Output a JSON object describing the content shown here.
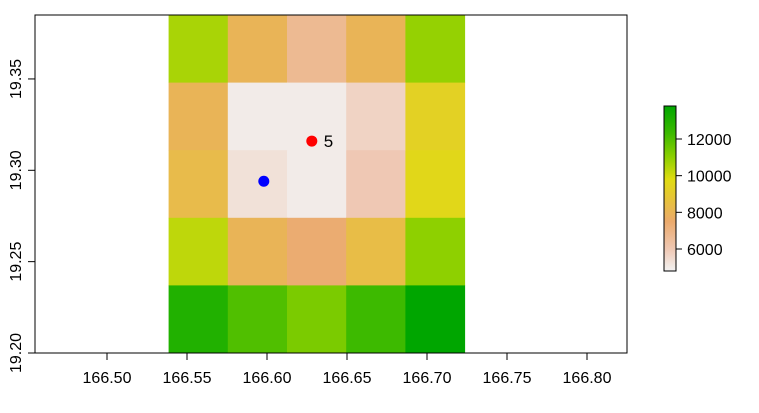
{
  "chart_data": {
    "type": "heatmap",
    "title": "",
    "xlabel": "",
    "ylabel": "",
    "xlim": [
      166.455,
      166.825
    ],
    "ylim": [
      19.2,
      19.385
    ],
    "x_ticks": [
      "166.50",
      "166.55",
      "166.60",
      "166.65",
      "166.70",
      "166.75",
      "166.80"
    ],
    "y_ticks": [
      "19.20",
      "19.25",
      "19.30",
      "19.35"
    ],
    "grid": false,
    "raster": {
      "x_edges": [
        166.5385,
        166.5755,
        166.6125,
        166.6495,
        166.6865,
        166.7235
      ],
      "y_edges": [
        19.2,
        19.237,
        19.274,
        19.311,
        19.348,
        19.385
      ],
      "rows_top_to_bottom": [
        [
          10600,
          8000,
          6700,
          8000,
          10900
        ],
        [
          8000,
          5000,
          5000,
          5700,
          9300
        ],
        [
          8300,
          5300,
          5000,
          6000,
          9600
        ],
        [
          10300,
          8000,
          7400,
          8400,
          11000
        ],
        [
          13000,
          12000,
          11300,
          12300,
          13800
        ]
      ]
    },
    "color_scale": {
      "ticks": [
        "6000",
        "8000",
        "10000",
        "12000"
      ],
      "range": [
        4800,
        13800
      ],
      "stops": [
        {
          "value": 4800,
          "color": "#f2f2f2"
        },
        {
          "value": 6000,
          "color": "#efc8b4"
        },
        {
          "value": 7500,
          "color": "#ebaa6c"
        },
        {
          "value": 8800,
          "color": "#e6c536"
        },
        {
          "value": 9800,
          "color": "#e0dc12"
        },
        {
          "value": 11000,
          "color": "#8ed000"
        },
        {
          "value": 12300,
          "color": "#3dba00"
        },
        {
          "value": 13800,
          "color": "#00a600"
        }
      ]
    },
    "points": [
      {
        "x": 166.628,
        "y": 19.316,
        "color": "#ff0000",
        "label": "5"
      },
      {
        "x": 166.598,
        "y": 19.294,
        "color": "#0000ff",
        "label": ""
      }
    ]
  }
}
